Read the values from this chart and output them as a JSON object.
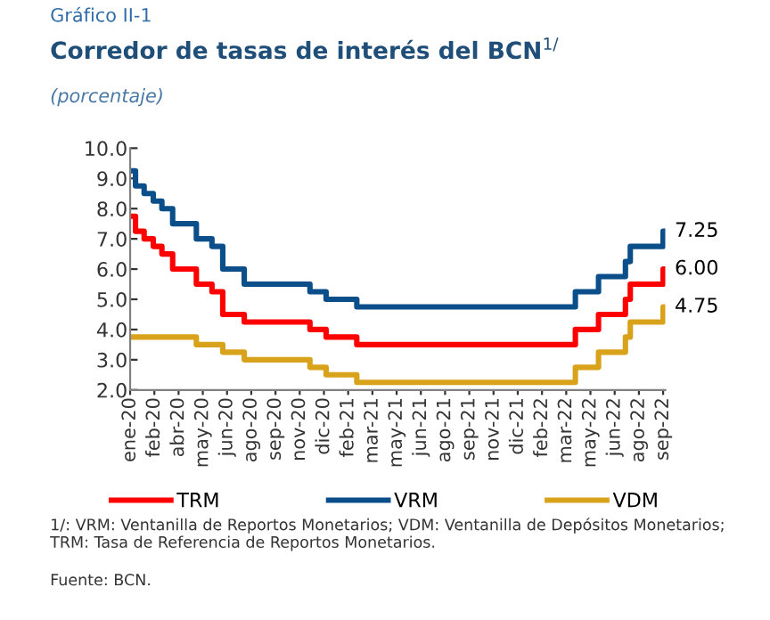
{
  "chart_data": {
    "type": "step",
    "title": "Corredor de tasas de interés del BCN$^{1/}$",
    "subtitle": "(porcentaje)",
    "annotations": [
      "Gráfico II-1",
      "1/: VRM: Ventanilla de Reportos Monetarios; VDM: Ventanilla de Depósitos Monetarios; TRM: Tasa de Referencia de Reportos Monetarios.",
      "Fuente: BCN."
    ],
    "x": [
      "2020-01-02",
      "2020-01-12",
      "2020-01-28",
      "2020-02-14",
      "2020-03-01",
      "2020-03-21",
      "2020-05-04",
      "2020-06-02",
      "2020-06-22",
      "2020-08-01",
      "2020-12-01",
      "2020-12-31",
      "2021-02-26",
      "2022-04-08",
      "2022-05-21",
      "2022-07-10",
      "2022-07-19",
      "2022-09-18",
      "2022-09-21"
    ],
    "series": [
      {
        "name": "TRM",
        "color": "#ff0000",
        "values": [
          7.75,
          7.25,
          7.0,
          6.75,
          6.5,
          6.0,
          5.5,
          5.25,
          4.5,
          4.25,
          4.0,
          3.75,
          3.5,
          4.0,
          4.5,
          5.0,
          5.5,
          6.0,
          6.0
        ],
        "value_labels": [
          null,
          null,
          null,
          null,
          null,
          null,
          null,
          null,
          null,
          null,
          null,
          null,
          null,
          null,
          null,
          null,
          null,
          null,
          "6.00"
        ]
      },
      {
        "name": "VRM",
        "color": "#0b4f8a",
        "values": [
          9.25,
          8.75,
          8.5,
          8.25,
          8.0,
          7.5,
          7.0,
          6.75,
          6.0,
          5.5,
          5.25,
          5.0,
          4.75,
          5.25,
          5.75,
          6.25,
          6.75,
          7.25,
          7.25
        ],
        "value_labels": [
          null,
          null,
          null,
          null,
          null,
          null,
          null,
          null,
          null,
          null,
          null,
          null,
          null,
          null,
          null,
          null,
          null,
          null,
          "7.25"
        ]
      },
      {
        "name": "VDM",
        "color": "#d9a21b",
        "values": [
          3.75,
          3.75,
          3.75,
          3.75,
          3.75,
          3.75,
          3.5,
          3.5,
          3.25,
          3.0,
          2.75,
          2.5,
          2.25,
          2.75,
          3.25,
          3.75,
          4.25,
          4.75,
          4.75
        ],
        "value_labels": [
          null,
          null,
          null,
          null,
          null,
          null,
          null,
          null,
          null,
          null,
          null,
          null,
          null,
          null,
          null,
          null,
          null,
          null,
          "4.75"
        ]
      }
    ],
    "xlim": [
      "2020-01-02",
      "2022-09-22"
    ],
    "xticks": [
      {
        "value": "2020-01-02",
        "label": "ene-20"
      },
      {
        "value": "2020-02-16",
        "label": "feb-20"
      },
      {
        "value": "2020-04-01",
        "label": "abr-20"
      },
      {
        "value": "2020-05-16",
        "label": "may-20"
      },
      {
        "value": "2020-06-30",
        "label": "jun-20"
      },
      {
        "value": "2020-08-14",
        "label": "ago-20"
      },
      {
        "value": "2020-09-28",
        "label": "sep-20"
      },
      {
        "value": "2020-11-12",
        "label": "nov-20"
      },
      {
        "value": "2020-12-27",
        "label": "dic-20"
      },
      {
        "value": "2021-02-10",
        "label": "feb-21"
      },
      {
        "value": "2021-03-27",
        "label": "mar-21"
      },
      {
        "value": "2021-05-11",
        "label": "may-21"
      },
      {
        "value": "2021-06-25",
        "label": "jun-21"
      },
      {
        "value": "2021-08-09",
        "label": "ago-21"
      },
      {
        "value": "2021-09-23",
        "label": "sep-21"
      },
      {
        "value": "2021-11-07",
        "label": "nov-21"
      },
      {
        "value": "2021-12-22",
        "label": "dic-21"
      },
      {
        "value": "2022-02-05",
        "label": "feb-22"
      },
      {
        "value": "2022-03-22",
        "label": "mar-22"
      },
      {
        "value": "2022-05-06",
        "label": "may-22"
      },
      {
        "value": "2022-06-20",
        "label": "jun-22"
      },
      {
        "value": "2022-08-04",
        "label": "ago-22"
      },
      {
        "value": "2022-09-18",
        "label": "sep-22"
      }
    ],
    "ylim": [
      2.0,
      10.0
    ],
    "yticks": [
      {
        "value": 2,
        "label": "2.0"
      },
      {
        "value": 3,
        "label": "3.0"
      },
      {
        "value": 4,
        "label": "4.0"
      },
      {
        "value": 5,
        "label": "5.0"
      },
      {
        "value": 6,
        "label": "6.0"
      },
      {
        "value": 7,
        "label": "7.0"
      },
      {
        "value": 8,
        "label": "8.0"
      },
      {
        "value": 9,
        "label": "9.0"
      },
      {
        "value": 10,
        "label": "10.0"
      }
    ],
    "grid": false,
    "legend": "bottom",
    "line_style": "solid"
  }
}
